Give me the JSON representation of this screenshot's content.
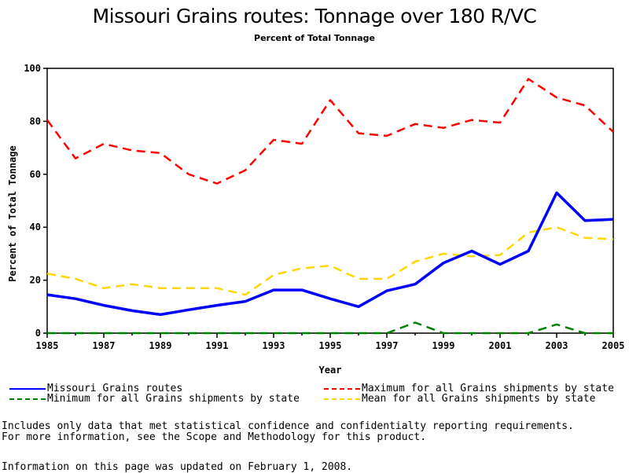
{
  "chart_data": {
    "type": "line",
    "title": "Missouri Grains routes: Tonnage over 180 R/VC",
    "subtitle": "Percent of Total Tonnage",
    "xlabel": "Year",
    "ylabel": "Percent of Total Tonnage",
    "xlim": [
      1985,
      2005
    ],
    "ylim": [
      0,
      100
    ],
    "x_ticks": [
      1985,
      1987,
      1989,
      1991,
      1993,
      1995,
      1997,
      1999,
      2001,
      2003,
      2005
    ],
    "y_ticks": [
      0,
      20,
      40,
      60,
      80,
      100
    ],
    "x": [
      1985,
      1986,
      1987,
      1988,
      1989,
      1990,
      1991,
      1992,
      1993,
      1994,
      1995,
      1996,
      1997,
      1998,
      1999,
      2000,
      2001,
      2002,
      2003,
      2004,
      2005
    ],
    "series": [
      {
        "name": "Missouri Grains routes",
        "color": "#0000ff",
        "style": "solid",
        "values": [
          14.5,
          13,
          10.5,
          8.5,
          7,
          8.8,
          10.5,
          12,
          16.3,
          16.3,
          13,
          10,
          16,
          18.5,
          26.5,
          31,
          26,
          31,
          53,
          42.5,
          43
        ]
      },
      {
        "name": "Maximum for all Grains shipments by state",
        "color": "#ff0000",
        "style": "dashed",
        "values": [
          80.5,
          66,
          71.5,
          69,
          68,
          60,
          56.5,
          61.5,
          73,
          71.5,
          88,
          75.5,
          74.5,
          79,
          77.5,
          80.5,
          79.5,
          96,
          89,
          86,
          76
        ]
      },
      {
        "name": "Minimum for all Grains shipments by state",
        "color": "#008000",
        "style": "dashed",
        "values": [
          0,
          0,
          0,
          0,
          0,
          0,
          0,
          0,
          0,
          0,
          0,
          0,
          0,
          4,
          0,
          0,
          0,
          0,
          3.3,
          0,
          0
        ]
      },
      {
        "name": "Mean for all Grains shipments by state",
        "color": "#ffd700",
        "style": "dashed",
        "values": [
          22.5,
          20.5,
          17,
          18.5,
          17,
          17,
          17,
          14.5,
          22,
          24.5,
          25.5,
          20.5,
          20.5,
          27,
          30,
          29,
          29.5,
          38,
          40,
          36,
          35.5
        ]
      }
    ],
    "grid": false,
    "legend_position": "bottom"
  },
  "notes": {
    "line1": "Includes only data that met statistical confidence and confidentialty reporting requirements.",
    "line2": "For more information, see the Scope and Methodology for this product.",
    "updated": "Information on this page was updated on February 1, 2008."
  }
}
